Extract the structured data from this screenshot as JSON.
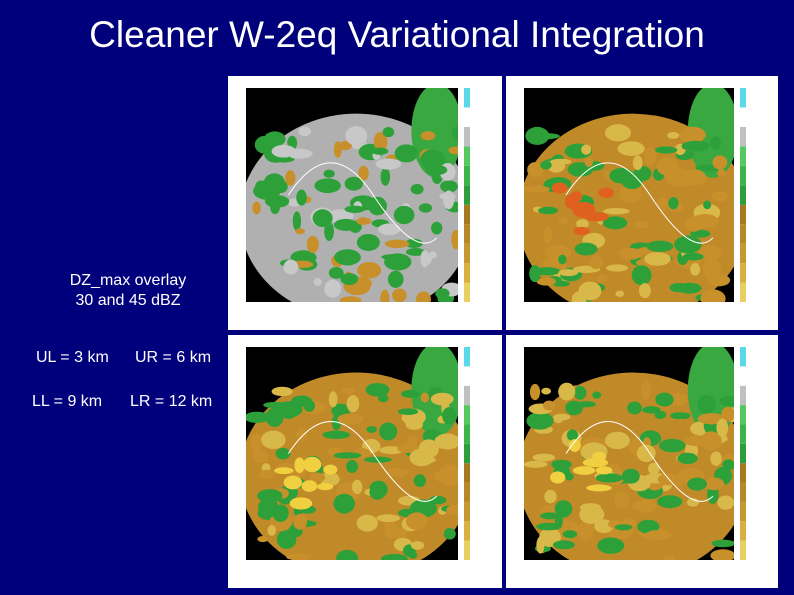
{
  "title": "Cleaner W-2eq Variational Integration",
  "overlay_note": {
    "line1": "DZ_max overlay",
    "line2": "30 and 45 dBZ"
  },
  "levels": {
    "ul": "UL = 3 km",
    "ur": "UR = 6 km",
    "ll": "LL = 9 km",
    "lr": "LR = 12 km"
  }
}
